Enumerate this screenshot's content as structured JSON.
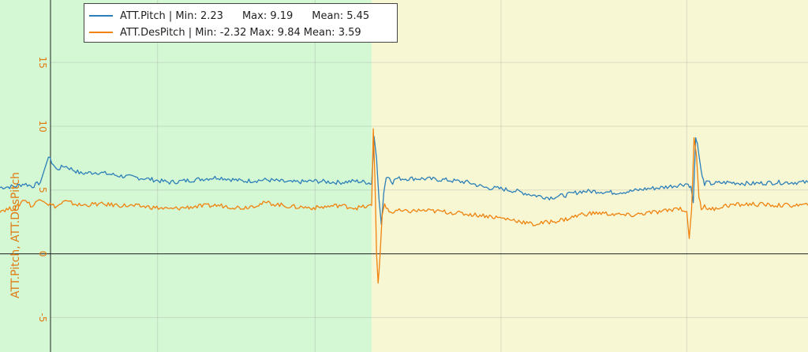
{
  "chart_data": {
    "type": "line",
    "ylabel": "ATT.Pitch, ATT.DesPitch",
    "ylim": [
      -7.7,
      19.9
    ],
    "xlim": [
      0,
      1
    ],
    "y_ticks": [
      "15",
      "10",
      "5",
      "0",
      "-5"
    ],
    "grid": true,
    "legend_position": "top-left",
    "background_bands": [
      {
        "x_start": 0,
        "x_end": 0.46,
        "color": "#d4f7d4"
      },
      {
        "x_start": 0.46,
        "x_end": 1,
        "color": "#f7f7d4"
      }
    ],
    "series": [
      {
        "name": "ATT.Pitch",
        "color": "#2c7fb8",
        "legend": {
          "label": "ATT.Pitch | Min: 2.23",
          "max": "Max: 9.19",
          "mean": "Mean: 5.45"
        },
        "x": [
          0,
          0.02,
          0.03,
          0.04,
          0.05,
          0.06,
          0.07,
          0.08,
          0.1,
          0.12,
          0.15,
          0.18,
          0.21,
          0.24,
          0.27,
          0.3,
          0.33,
          0.36,
          0.39,
          0.42,
          0.44,
          0.455,
          0.46,
          0.463,
          0.466,
          0.469,
          0.472,
          0.475,
          0.478,
          0.482,
          0.486,
          0.49,
          0.5,
          0.52,
          0.55,
          0.58,
          0.6,
          0.62,
          0.64,
          0.66,
          0.68,
          0.7,
          0.72,
          0.74,
          0.76,
          0.78,
          0.8,
          0.82,
          0.84,
          0.85,
          0.855,
          0.858,
          0.861,
          0.863,
          0.866,
          0.869,
          0.872,
          0.876,
          0.88,
          0.9,
          0.93,
          0.96,
          1
        ],
        "y": [
          5.2,
          5.3,
          5.5,
          5.3,
          5.6,
          7.6,
          6.6,
          6.9,
          6.3,
          6.4,
          6.1,
          5.9,
          5.6,
          5.8,
          6.0,
          5.7,
          5.8,
          5.6,
          5.7,
          5.6,
          5.7,
          5.6,
          5.5,
          9.2,
          7.5,
          4.3,
          2.3,
          4.8,
          6.0,
          6.0,
          5.6,
          5.9,
          5.9,
          5.9,
          5.8,
          5.6,
          5.2,
          5.1,
          4.9,
          4.6,
          4.4,
          4.6,
          4.9,
          4.9,
          4.8,
          4.9,
          5.1,
          5.2,
          5.4,
          5.5,
          5.3,
          4.0,
          9.0,
          8.7,
          7.3,
          6.0,
          5.5,
          5.6,
          5.5,
          5.6,
          5.5,
          5.6,
          5.6
        ]
      },
      {
        "name": "ATT.DesPitch",
        "color": "#f0820e",
        "legend": {
          "label": "ATT.DesPitch | Min: -2.32",
          "max": "Max: 9.84",
          "mean": "Mean: 3.59"
        },
        "x": [
          0,
          0.02,
          0.03,
          0.04,
          0.05,
          0.06,
          0.07,
          0.08,
          0.1,
          0.12,
          0.15,
          0.18,
          0.21,
          0.24,
          0.27,
          0.3,
          0.33,
          0.36,
          0.39,
          0.42,
          0.44,
          0.455,
          0.46,
          0.462,
          0.464,
          0.466,
          0.468,
          0.47,
          0.473,
          0.476,
          0.48,
          0.485,
          0.49,
          0.5,
          0.52,
          0.55,
          0.58,
          0.6,
          0.62,
          0.64,
          0.66,
          0.68,
          0.7,
          0.72,
          0.74,
          0.76,
          0.78,
          0.8,
          0.82,
          0.84,
          0.85,
          0.853,
          0.856,
          0.859,
          0.862,
          0.865,
          0.868,
          0.872,
          0.876,
          0.88,
          0.9,
          0.93,
          0.96,
          1
        ],
        "y": [
          3.4,
          3.6,
          4.3,
          3.7,
          4.4,
          3.9,
          3.7,
          4.1,
          3.8,
          3.9,
          3.8,
          3.7,
          3.5,
          3.7,
          3.8,
          3.6,
          4.0,
          3.7,
          3.6,
          3.8,
          3.6,
          3.7,
          3.8,
          9.8,
          6.0,
          0.0,
          -2.3,
          -0.5,
          3.0,
          4.0,
          3.4,
          3.2,
          3.4,
          3.3,
          3.4,
          3.3,
          3.1,
          3.0,
          2.8,
          2.6,
          2.3,
          2.5,
          2.7,
          3.1,
          3.2,
          3.1,
          3.0,
          3.2,
          3.3,
          3.6,
          3.3,
          1.2,
          3.5,
          9.1,
          7.7,
          4.5,
          3.4,
          3.9,
          3.4,
          3.5,
          3.8,
          3.9,
          3.8,
          3.8
        ]
      }
    ]
  }
}
